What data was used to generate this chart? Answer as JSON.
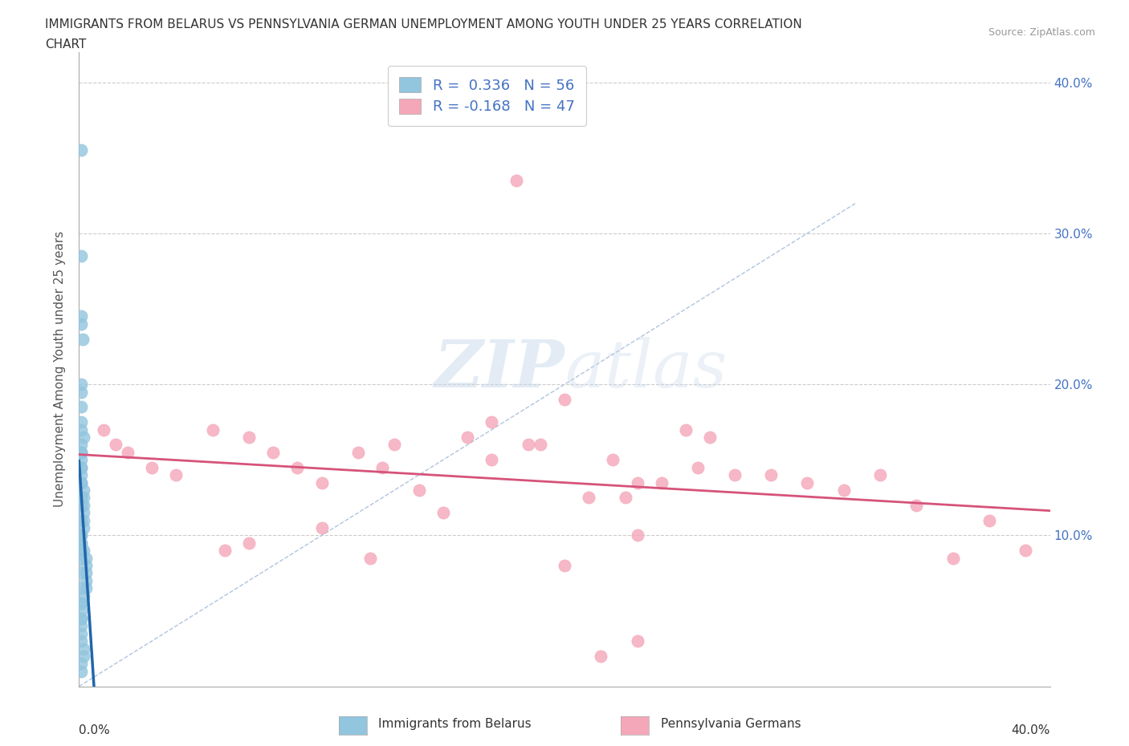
{
  "title_line1": "IMMIGRANTS FROM BELARUS VS PENNSYLVANIA GERMAN UNEMPLOYMENT AMONG YOUTH UNDER 25 YEARS CORRELATION",
  "title_line2": "CHART",
  "source": "Source: ZipAtlas.com",
  "ylabel": "Unemployment Among Youth under 25 years",
  "xmin": 0.0,
  "xmax": 0.4,
  "ymin": 0.0,
  "ymax": 0.42,
  "legend_r1": "R =  0.336   N = 56",
  "legend_r2": "R = -0.168   N = 47",
  "legend_label1": "Immigrants from Belarus",
  "legend_label2": "Pennsylvania Germans",
  "color_blue": "#92c5de",
  "color_pink": "#f4a7b9",
  "color_blue_line": "#2166ac",
  "color_pink_line": "#d6537a",
  "color_diag": "#b0c4de",
  "watermark_color": "#c8d8ea",
  "right_axis_color": "#4472C4",
  "belarus_x": [
    0.001,
    0.001,
    0.001,
    0.001,
    0.0015,
    0.001,
    0.001,
    0.001,
    0.001,
    0.001,
    0.002,
    0.001,
    0.001,
    0.001,
    0.001,
    0.001,
    0.001,
    0.002,
    0.002,
    0.002,
    0.002,
    0.002,
    0.002,
    0.001,
    0.001,
    0.002,
    0.003,
    0.003,
    0.003,
    0.003,
    0.003,
    0.002,
    0.001,
    0.001,
    0.001,
    0.001,
    0.001,
    0.001,
    0.002,
    0.002,
    0.001,
    0.001,
    0.001,
    0.001,
    0.001,
    0.001,
    0.001,
    0.001,
    0.001,
    0.001,
    0.001,
    0.001,
    0.001,
    0.001,
    0.001,
    0.001
  ],
  "belarus_y": [
    0.355,
    0.285,
    0.245,
    0.24,
    0.23,
    0.2,
    0.195,
    0.185,
    0.175,
    0.17,
    0.165,
    0.16,
    0.155,
    0.15,
    0.145,
    0.14,
    0.135,
    0.13,
    0.125,
    0.12,
    0.115,
    0.11,
    0.105,
    0.1,
    0.095,
    0.09,
    0.085,
    0.08,
    0.075,
    0.07,
    0.065,
    0.06,
    0.055,
    0.05,
    0.045,
    0.04,
    0.035,
    0.03,
    0.025,
    0.02,
    0.015,
    0.01,
    0.09,
    0.1,
    0.11,
    0.12,
    0.095,
    0.085,
    0.075,
    0.065,
    0.055,
    0.045,
    0.155,
    0.145,
    0.135,
    0.125
  ],
  "pagerman_x": [
    0.18,
    0.01,
    0.015,
    0.02,
    0.03,
    0.04,
    0.055,
    0.07,
    0.08,
    0.09,
    0.1,
    0.115,
    0.125,
    0.13,
    0.14,
    0.16,
    0.17,
    0.185,
    0.2,
    0.21,
    0.225,
    0.24,
    0.255,
    0.27,
    0.285,
    0.3,
    0.315,
    0.33,
    0.345,
    0.36,
    0.375,
    0.39,
    0.19,
    0.22,
    0.23,
    0.25,
    0.26,
    0.23,
    0.2,
    0.12,
    0.06,
    0.07,
    0.1,
    0.15,
    0.17,
    0.23,
    0.215
  ],
  "pagerman_y": [
    0.335,
    0.17,
    0.16,
    0.155,
    0.145,
    0.14,
    0.17,
    0.165,
    0.155,
    0.145,
    0.135,
    0.155,
    0.145,
    0.16,
    0.13,
    0.165,
    0.15,
    0.16,
    0.19,
    0.125,
    0.125,
    0.135,
    0.145,
    0.14,
    0.14,
    0.135,
    0.13,
    0.14,
    0.12,
    0.085,
    0.11,
    0.09,
    0.16,
    0.15,
    0.135,
    0.17,
    0.165,
    0.1,
    0.08,
    0.085,
    0.09,
    0.095,
    0.105,
    0.115,
    0.175,
    0.03,
    0.02
  ]
}
